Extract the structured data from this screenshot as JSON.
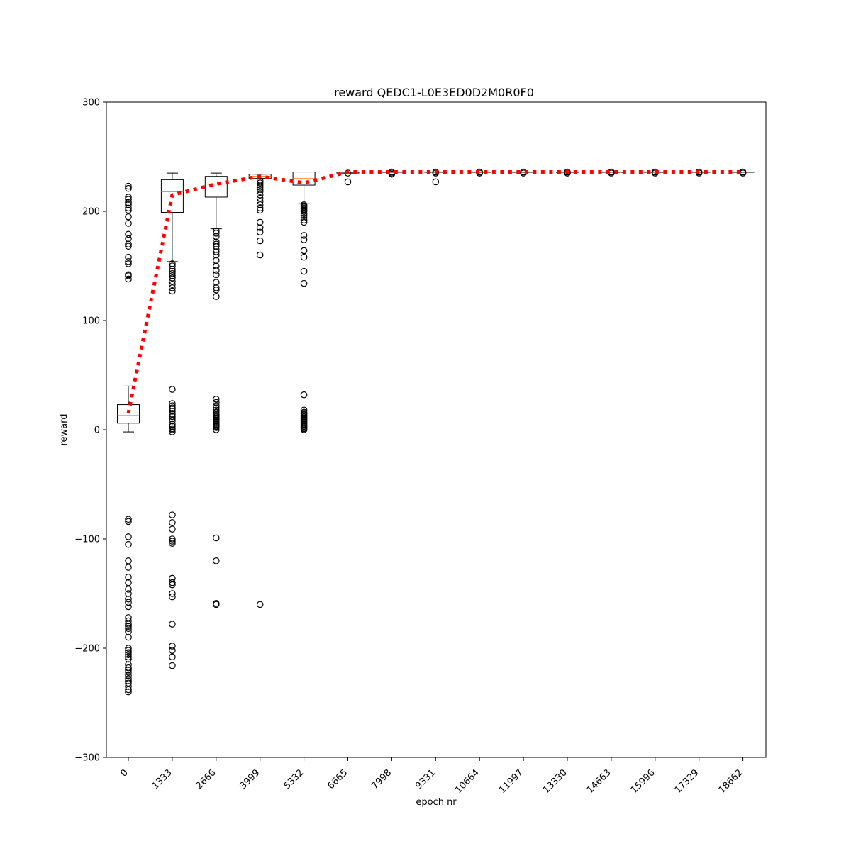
{
  "chart_data": {
    "type": "box",
    "title": "reward QEDC1-L0E3ED0D2M0R0F0",
    "xlabel": "epoch nr",
    "ylabel": "reward",
    "ylim": [
      -300,
      300
    ],
    "yticks": [
      -300,
      -200,
      -100,
      0,
      100,
      200,
      300
    ],
    "ytick_labels": [
      "−300",
      "−200",
      "−100",
      "0",
      "100",
      "200",
      "300"
    ],
    "categories": [
      "0",
      "1333",
      "2666",
      "3999",
      "5332",
      "6665",
      "7998",
      "9331",
      "10664",
      "11997",
      "13330",
      "14663",
      "15996",
      "17329",
      "18662"
    ],
    "boxes": [
      {
        "q1": 6,
        "median": 13,
        "q3": 23,
        "whisker_low": -2,
        "whisker_high": 40,
        "fliers": [
          -240,
          -238,
          -235,
          -232,
          -230,
          -228,
          -225,
          -222,
          -220,
          -218,
          -215,
          -210,
          -208,
          -206,
          -204,
          -202,
          -200,
          -190,
          -185,
          -182,
          -180,
          -178,
          -175,
          -172,
          -162,
          -158,
          -155,
          -150,
          -146,
          -140,
          -135,
          -126,
          -120,
          -105,
          -98,
          -84,
          -82,
          138,
          141,
          142,
          152,
          154,
          158,
          168,
          170,
          175,
          179,
          189,
          195,
          201,
          203,
          206,
          208,
          211,
          213,
          221,
          223
        ]
      },
      {
        "q1": 199,
        "median": 218,
        "q3": 229,
        "whisker_low": 154,
        "whisker_high": 235,
        "fliers": [
          -216,
          -208,
          -202,
          -198,
          -178,
          -153,
          -150,
          -142,
          -140,
          -136,
          -104,
          -102,
          -100,
          -91,
          -85,
          -78,
          -2,
          0,
          1,
          3,
          5,
          8,
          10,
          12,
          14,
          15,
          17,
          19,
          20,
          22,
          24,
          37,
          127,
          130,
          133,
          136,
          139,
          141,
          143,
          145,
          147,
          150,
          152
        ]
      },
      {
        "q1": 213,
        "median": 225,
        "q3": 232,
        "whisker_low": 184,
        "whisker_high": 235,
        "fliers": [
          -160,
          -159,
          -120,
          -99,
          0,
          2,
          3,
          4,
          5,
          6,
          7,
          8,
          9,
          10,
          11,
          12,
          13,
          14,
          16,
          18,
          20,
          22,
          25,
          28,
          122,
          128,
          130,
          135,
          142,
          146,
          150,
          155,
          160,
          163,
          165,
          168,
          170,
          172,
          177,
          180,
          182
        ]
      },
      {
        "q1": 230,
        "median": 232,
        "q3": 234,
        "whisker_low": 230,
        "whisker_high": 234,
        "fliers": [
          -160,
          160,
          173,
          181,
          185,
          190,
          201,
          203,
          206,
          209,
          212,
          215,
          218,
          220,
          222,
          224,
          226,
          228
        ]
      },
      {
        "q1": 224,
        "median": 230,
        "q3": 236,
        "whisker_low": 207,
        "whisker_high": 236,
        "fliers": [
          0,
          1,
          2,
          3,
          4,
          5,
          6,
          7,
          8,
          9,
          10,
          11,
          12,
          13,
          14,
          15,
          16,
          18,
          32,
          134,
          145,
          158,
          164,
          174,
          178,
          190,
          192,
          194,
          196,
          198,
          200,
          201,
          202,
          203,
          204,
          205,
          206
        ]
      },
      {
        "q1": 235,
        "median": 236,
        "q3": 236,
        "whisker_low": 235,
        "whisker_high": 236,
        "fliers": [
          227,
          235
        ]
      },
      {
        "q1": 236,
        "median": 236,
        "q3": 236,
        "whisker_low": 236,
        "whisker_high": 236,
        "fliers": [
          234,
          235,
          236
        ]
      },
      {
        "q1": 236,
        "median": 236,
        "q3": 236,
        "whisker_low": 236,
        "whisker_high": 236,
        "fliers": [
          227,
          235,
          236
        ]
      },
      {
        "q1": 236,
        "median": 236,
        "q3": 236,
        "whisker_low": 236,
        "whisker_high": 236,
        "fliers": [
          235,
          236
        ]
      },
      {
        "q1": 236,
        "median": 236,
        "q3": 236,
        "whisker_low": 236,
        "whisker_high": 236,
        "fliers": [
          235,
          236
        ]
      },
      {
        "q1": 236,
        "median": 236,
        "q3": 236,
        "whisker_low": 236,
        "whisker_high": 236,
        "fliers": [
          235,
          236
        ]
      },
      {
        "q1": 236,
        "median": 236,
        "q3": 236,
        "whisker_low": 236,
        "whisker_high": 236,
        "fliers": [
          235,
          236
        ]
      },
      {
        "q1": 236,
        "median": 236,
        "q3": 236,
        "whisker_low": 236,
        "whisker_high": 236,
        "fliers": [
          235,
          236
        ]
      },
      {
        "q1": 236,
        "median": 236,
        "q3": 236,
        "whisker_low": 236,
        "whisker_high": 236,
        "fliers": [
          235,
          236
        ]
      },
      {
        "q1": 236,
        "median": 236,
        "q3": 236,
        "whisker_low": 236,
        "whisker_high": 236,
        "fliers": [
          235,
          236
        ]
      }
    ],
    "mean_line": [
      15,
      215,
      225,
      232,
      226,
      236,
      236,
      236,
      236,
      236,
      236,
      236,
      236,
      236,
      236
    ],
    "grid": false,
    "colors": {
      "box": "#000000",
      "median": "#ff7f0e",
      "mean_line": "#ff0000",
      "flier": "#000000"
    }
  }
}
